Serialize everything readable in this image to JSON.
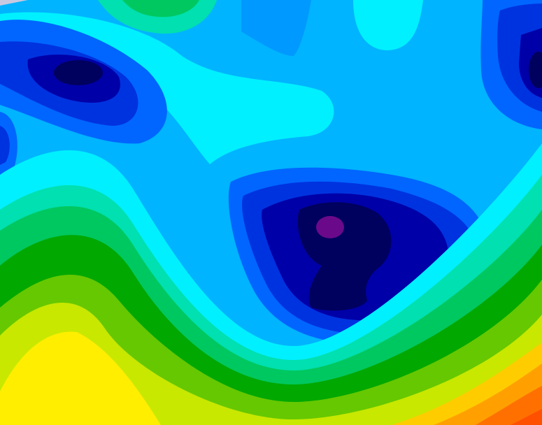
{
  "map": {
    "type": "filled-contour",
    "palette": {
      "navy": "#00005e",
      "dark_blue": "#0000a8",
      "blue": "#0033e0",
      "mid_blue": "#0066ff",
      "sky_blue": "#0099ff",
      "light_blue": "#00b4ff",
      "cyan": "#00f0ff",
      "aqua_green": "#00e0b0",
      "green": "#00c860",
      "dark_green": "#00a800",
      "lime": "#66c800",
      "yellow_green": "#c8e800",
      "yellow": "#ffee00",
      "gold": "#ffcc00",
      "orange": "#ffa000",
      "dark_orange": "#ff7000",
      "red_orange": "#ff5000",
      "purple": "#6a0a8a"
    }
  }
}
